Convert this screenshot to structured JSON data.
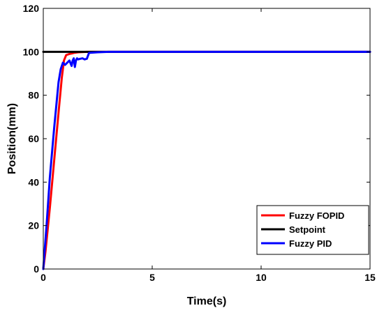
{
  "chart_data": {
    "type": "line",
    "title": "",
    "xlabel": "Time(s)",
    "ylabel": "Position(mm)",
    "xlim": [
      0,
      15
    ],
    "ylim": [
      0,
      120
    ],
    "xticks": [
      0,
      5,
      10,
      15
    ],
    "yticks": [
      0,
      20,
      40,
      60,
      80,
      100,
      120
    ],
    "grid": false,
    "legend_position": "bottom-right",
    "series": [
      {
        "name": "Fuzzy FOPID",
        "color": "#ff0000",
        "x": [
          0,
          0.1,
          0.3,
          0.5,
          0.7,
          0.85,
          0.95,
          1.05,
          1.2,
          1.3,
          1.4,
          1.6,
          2.0,
          3.0,
          15.0
        ],
        "y": [
          0,
          8,
          28,
          50,
          72,
          88,
          96,
          98.5,
          99,
          99.2,
          99.5,
          99.8,
          100,
          100,
          100
        ]
      },
      {
        "name": "Setpoint",
        "color": "#000000",
        "x": [
          0,
          15
        ],
        "y": [
          100,
          100
        ]
      },
      {
        "name": "Fuzzy PID",
        "color": "#0000ff",
        "x": [
          0,
          0.15,
          0.3,
          0.5,
          0.7,
          0.8,
          0.9,
          1.0,
          1.1,
          1.2,
          1.3,
          1.35,
          1.4,
          1.45,
          1.5,
          1.55,
          1.6,
          1.7,
          1.8,
          1.9,
          2.0,
          2.1,
          2.2,
          2.5,
          3.0,
          15.0
        ],
        "y": [
          0,
          20,
          42,
          65,
          86,
          92,
          95,
          94,
          95,
          96,
          93.5,
          96,
          97,
          93,
          96,
          97,
          96.5,
          96.8,
          97,
          96.5,
          96.8,
          99.5,
          99.6,
          99.8,
          100,
          100
        ]
      }
    ],
    "legend": [
      "Fuzzy FOPID",
      "Setpoint",
      "Fuzzy PID"
    ]
  }
}
